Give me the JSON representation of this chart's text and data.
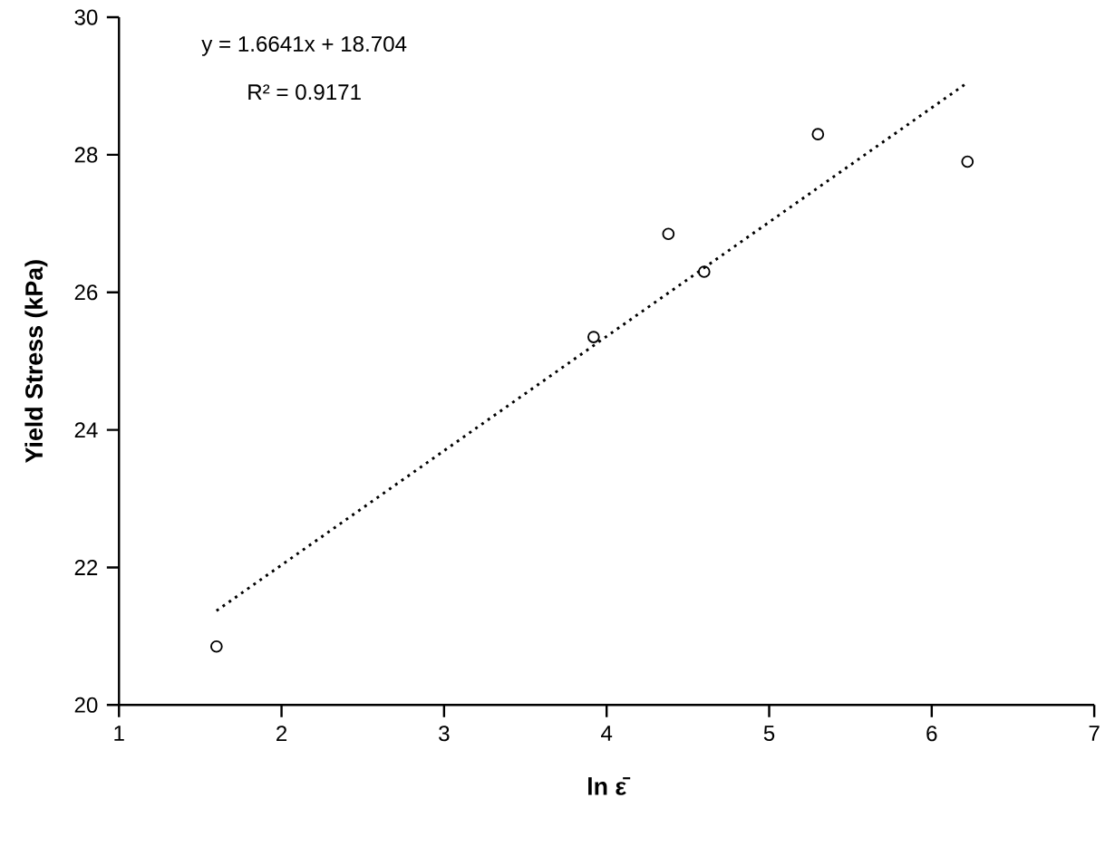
{
  "chart_data": {
    "type": "scatter",
    "xlabel": "ln ε̄",
    "ylabel": "Yield Stress (kPa)",
    "xlim": [
      1,
      7
    ],
    "xticks": [
      1,
      2,
      3,
      4,
      5,
      6,
      7
    ],
    "ylim": [
      20,
      30
    ],
    "yticks": [
      20,
      22,
      24,
      26,
      28,
      30
    ],
    "series": [
      {
        "color": "#000000",
        "marker": "circle",
        "x": [
          1.6,
          3.92,
          4.38,
          4.6,
          5.3,
          6.22
        ],
        "values": [
          20.85,
          25.35,
          26.85,
          26.3,
          28.3,
          27.9
        ]
      },
      {
        "type": "line",
        "color": "#000000",
        "line_style": "dotted",
        "marker": "none",
        "x": [
          1.6,
          6.22
        ],
        "values": [
          21.37,
          29.05
        ]
      }
    ],
    "annotations": [
      "y = 1.6641x + 18.704",
      "R² = 0.9171"
    ]
  }
}
